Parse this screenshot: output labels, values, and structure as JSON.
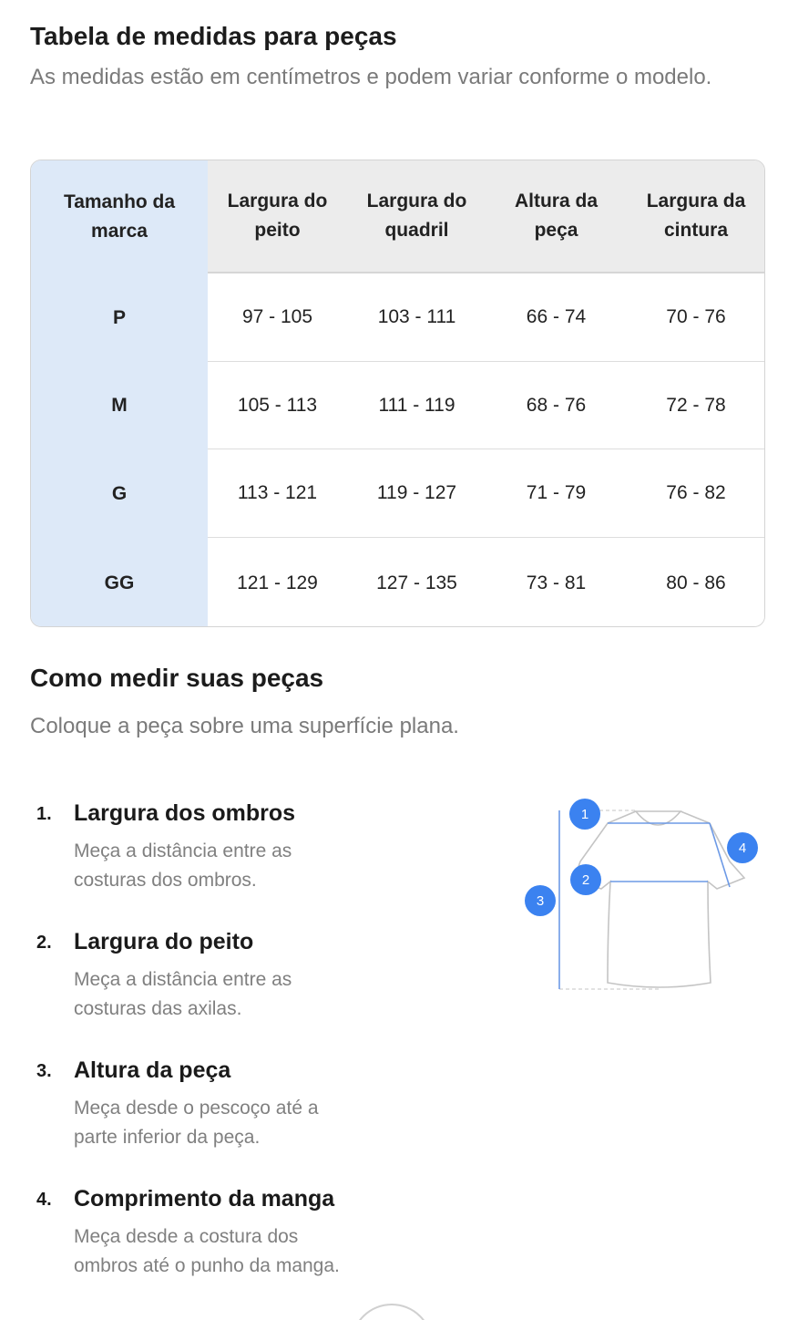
{
  "title": "Tabela de medidas para peças",
  "subtitle": "As medidas estão em centímetros e podem variar conforme o modelo.",
  "table": {
    "headers": [
      "Tamanho da marca",
      "Largura do peito",
      "Largura do quadril",
      "Altura da peça",
      "Largura da cintura"
    ],
    "rows": [
      [
        "P",
        "97 - 105",
        "103 - 111",
        "66 - 74",
        "70 - 76"
      ],
      [
        "M",
        "105 - 113",
        "111 - 119",
        "68 - 76",
        "72 - 78"
      ],
      [
        "G",
        "113 - 121",
        "119 - 127",
        "71 - 79",
        "76 - 82"
      ],
      [
        "GG",
        "121 - 129",
        "127 - 135",
        "73 - 81",
        "80 - 86"
      ]
    ]
  },
  "how_to": {
    "title": "Como medir suas peças",
    "subtitle": "Coloque a peça sobre uma superfície plana.",
    "items": [
      {
        "num": "1.",
        "title": "Largura dos ombros",
        "desc": "Meça a distância entre as costuras dos ombros."
      },
      {
        "num": "2.",
        "title": "Largura do peito",
        "desc": "Meça a distância entre as costuras das axilas."
      },
      {
        "num": "3.",
        "title": "Altura da peça",
        "desc": "Meça desde o pescoço até a parte inferior da peça."
      },
      {
        "num": "4.",
        "title": "Comprimento da manga",
        "desc": "Meça desde a costura dos ombros até o punho da manga."
      }
    ]
  },
  "diagram": {
    "markers": [
      "1",
      "2",
      "3",
      "4"
    ],
    "accent": "#3b82f0",
    "icon": "t-shirt-measurement-diagram"
  },
  "colors": {
    "first_column": "#dde9f8",
    "header": "#ececec"
  }
}
